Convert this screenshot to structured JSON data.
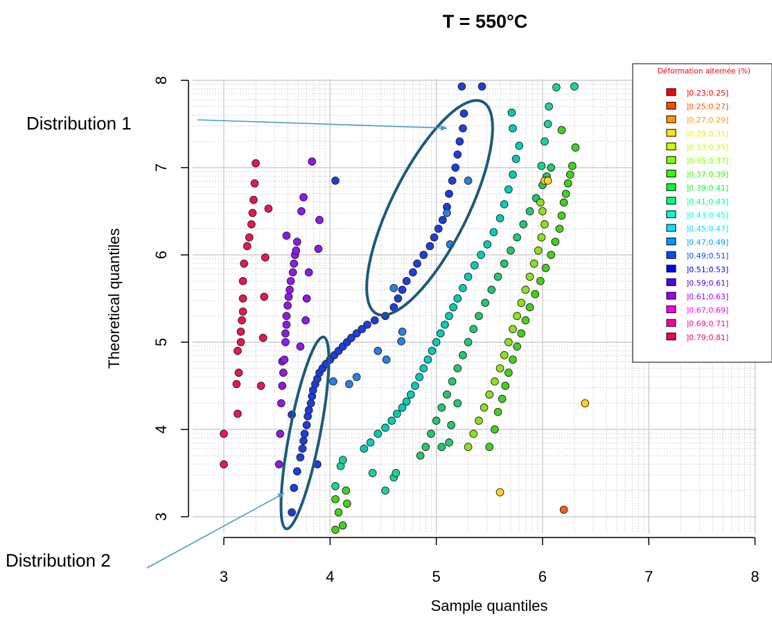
{
  "chart_data": {
    "type": "scatter",
    "title": "T = 550°C",
    "xlabel": "Sample quantiles",
    "ylabel": "Theoretical quantiles",
    "xlim": [
      3,
      8
    ],
    "ylim": [
      3,
      8
    ],
    "x_ticks": [
      "3",
      "4",
      "5",
      "6",
      "7",
      "8"
    ],
    "y_ticks": [
      "3",
      "4",
      "5",
      "6",
      "7",
      "8"
    ],
    "grid": true,
    "legend": {
      "title": "Déformation alternée (%)",
      "placement": "top-right",
      "entries": [
        {
          "label": "]0.23;0.25]",
          "color": "#ff0000"
        },
        {
          "label": "]0.25;0.27]",
          "color": "#ff4d00"
        },
        {
          "label": "]0.27;0.29]",
          "color": "#ff9900"
        },
        {
          "label": "]0.29;0.31]",
          "color": "#ffe600"
        },
        {
          "label": "]0.33;0.35]",
          "color": "#ccff00"
        },
        {
          "label": "]0.35;0.37]",
          "color": "#80ff00"
        },
        {
          "label": "]0.37;0.39]",
          "color": "#33ff00"
        },
        {
          "label": "]0.39;0.41]",
          "color": "#00ff33"
        },
        {
          "label": "]0.41;0.43]",
          "color": "#00ff80"
        },
        {
          "label": "]0.43;0.45]",
          "color": "#00ffcc"
        },
        {
          "label": "]0.45;0.47]",
          "color": "#00e6ff"
        },
        {
          "label": "]0.47;0.49]",
          "color": "#0099ff"
        },
        {
          "label": "]0.49;0.51]",
          "color": "#004dff"
        },
        {
          "label": "]0.51;0.53]",
          "color": "#0000ff"
        },
        {
          "label": "]0.59;0.61]",
          "color": "#4d00ff"
        },
        {
          "label": "]0.61;0.63]",
          "color": "#9900ff"
        },
        {
          "label": "]0.67;0.69]",
          "color": "#ff00e6"
        },
        {
          "label": "]0.69;0.71]",
          "color": "#ff0099"
        },
        {
          "label": "]0.79;0.81]",
          "color": "#ff004d"
        }
      ]
    },
    "annotations": [
      {
        "label": "Distribution 1",
        "points_to": [
          5.1,
          7.5
        ]
      },
      {
        "label": "Distribution 2",
        "points_to": [
          3.58,
          3.27
        ]
      }
    ],
    "series": [
      {
        "color": "#e5194f",
        "points": [
          [
            3.0,
            3.6
          ],
          [
            3.0,
            3.95
          ],
          [
            3.13,
            4.18
          ],
          [
            3.12,
            4.52
          ],
          [
            3.14,
            4.65
          ],
          [
            3.13,
            4.9
          ],
          [
            3.16,
            5.0
          ],
          [
            3.16,
            5.12
          ],
          [
            3.17,
            5.25
          ],
          [
            3.18,
            5.35
          ],
          [
            3.18,
            5.5
          ],
          [
            3.18,
            5.7
          ],
          [
            3.19,
            5.9
          ],
          [
            3.22,
            6.1
          ],
          [
            3.24,
            6.2
          ],
          [
            3.26,
            6.35
          ],
          [
            3.27,
            6.48
          ],
          [
            3.28,
            6.63
          ],
          [
            3.29,
            6.82
          ],
          [
            3.3,
            7.05
          ],
          [
            3.35,
            4.5
          ],
          [
            3.37,
            5.05
          ],
          [
            3.38,
            5.52
          ],
          [
            3.39,
            5.97
          ],
          [
            3.42,
            6.53
          ]
        ]
      },
      {
        "color": "#8f1ae5",
        "points": [
          [
            3.52,
            3.6
          ],
          [
            3.53,
            3.95
          ],
          [
            3.54,
            4.3
          ],
          [
            3.55,
            4.5
          ],
          [
            3.56,
            4.65
          ],
          [
            3.55,
            4.78
          ],
          [
            3.57,
            4.8
          ],
          [
            3.58,
            5.0
          ],
          [
            3.58,
            5.1
          ],
          [
            3.59,
            5.2
          ],
          [
            3.59,
            5.3
          ],
          [
            3.6,
            5.42
          ],
          [
            3.61,
            5.52
          ],
          [
            3.62,
            5.6
          ],
          [
            3.63,
            5.7
          ],
          [
            3.65,
            5.8
          ],
          [
            3.66,
            5.9
          ],
          [
            3.67,
            6.0
          ],
          [
            3.68,
            6.05
          ],
          [
            3.69,
            6.15
          ],
          [
            3.59,
            6.22
          ],
          [
            3.72,
            4.95
          ],
          [
            3.73,
            6.5
          ],
          [
            3.75,
            6.66
          ],
          [
            3.77,
            5.25
          ],
          [
            3.78,
            5.5
          ],
          [
            3.8,
            5.8
          ],
          [
            3.83,
            7.07
          ],
          [
            3.89,
            6.07
          ],
          [
            3.9,
            6.4
          ]
        ]
      },
      {
        "color": "#1f3ddb",
        "points": [
          [
            3.64,
            3.05
          ],
          [
            3.66,
            3.33
          ],
          [
            3.69,
            3.52
          ],
          [
            3.72,
            3.68
          ],
          [
            3.74,
            3.78
          ],
          [
            3.75,
            3.87
          ],
          [
            3.76,
            3.95
          ],
          [
            3.78,
            4.05
          ],
          [
            3.79,
            4.15
          ],
          [
            3.8,
            4.22
          ],
          [
            3.82,
            4.3
          ],
          [
            3.83,
            4.38
          ],
          [
            3.84,
            4.45
          ],
          [
            3.86,
            4.52
          ],
          [
            3.88,
            4.58
          ],
          [
            3.9,
            4.65
          ],
          [
            3.93,
            4.7
          ],
          [
            3.96,
            4.75
          ],
          [
            4.0,
            4.8
          ],
          [
            4.04,
            4.85
          ],
          [
            4.08,
            4.9
          ],
          [
            4.12,
            4.95
          ],
          [
            4.16,
            5.0
          ],
          [
            4.2,
            5.05
          ],
          [
            4.25,
            5.1
          ],
          [
            4.3,
            5.15
          ],
          [
            4.35,
            5.2
          ],
          [
            4.42,
            5.25
          ],
          [
            4.52,
            5.3
          ],
          [
            4.6,
            5.4
          ],
          [
            4.64,
            5.5
          ],
          [
            4.68,
            5.6
          ],
          [
            4.72,
            5.7
          ],
          [
            4.78,
            5.8
          ],
          [
            4.82,
            5.9
          ],
          [
            4.88,
            6.0
          ],
          [
            4.94,
            6.1
          ],
          [
            4.98,
            6.2
          ],
          [
            5.02,
            6.3
          ],
          [
            5.06,
            6.4
          ],
          [
            5.1,
            6.55
          ],
          [
            5.12,
            6.7
          ],
          [
            5.15,
            6.85
          ],
          [
            5.18,
            7.0
          ],
          [
            5.2,
            7.15
          ],
          [
            5.22,
            7.3
          ],
          [
            5.25,
            7.45
          ],
          [
            5.26,
            7.62
          ],
          [
            5.24,
            7.93
          ],
          [
            5.43,
            7.93
          ],
          [
            3.64,
            4.17
          ],
          [
            3.88,
            3.6
          ],
          [
            4.05,
            6.85
          ]
        ]
      },
      {
        "color": "#2b7fe0",
        "points": [
          [
            4.03,
            4.55
          ],
          [
            4.18,
            4.52
          ],
          [
            4.25,
            4.6
          ],
          [
            4.45,
            4.9
          ],
          [
            4.53,
            4.8
          ],
          [
            4.6,
            5.62
          ],
          [
            4.68,
            5.12
          ],
          [
            4.67,
            5.01
          ],
          [
            5.1,
            6.48
          ],
          [
            5.13,
            6.12
          ],
          [
            5.3,
            6.85
          ]
        ]
      },
      {
        "color": "#00cdb8",
        "points": [
          [
            4.32,
            3.78
          ],
          [
            4.38,
            3.85
          ],
          [
            4.45,
            3.95
          ],
          [
            4.52,
            4.02
          ],
          [
            4.58,
            4.1
          ],
          [
            4.63,
            4.18
          ],
          [
            4.68,
            4.25
          ],
          [
            4.72,
            4.32
          ],
          [
            4.76,
            4.4
          ],
          [
            4.8,
            4.5
          ],
          [
            4.84,
            4.6
          ],
          [
            4.88,
            4.7
          ],
          [
            4.92,
            4.8
          ],
          [
            4.96,
            4.9
          ],
          [
            5.0,
            5.0
          ],
          [
            5.04,
            5.1
          ],
          [
            5.08,
            5.2
          ],
          [
            5.12,
            5.3
          ],
          [
            5.16,
            5.4
          ],
          [
            5.2,
            5.5
          ],
          [
            5.25,
            5.62
          ],
          [
            5.3,
            5.75
          ],
          [
            5.36,
            5.88
          ],
          [
            5.42,
            6.0
          ],
          [
            5.48,
            6.12
          ],
          [
            5.54,
            6.26
          ],
          [
            5.6,
            6.42
          ],
          [
            5.64,
            6.58
          ],
          [
            5.68,
            6.75
          ],
          [
            5.72,
            6.92
          ],
          [
            5.75,
            7.1
          ],
          [
            5.78,
            7.25
          ],
          [
            5.72,
            7.45
          ],
          [
            5.71,
            7.63
          ]
        ]
      },
      {
        "color": "#17d49b",
        "points": [
          [
            4.05,
            3.35
          ],
          [
            4.1,
            3.58
          ],
          [
            4.12,
            3.65
          ],
          [
            4.4,
            3.5
          ],
          [
            4.52,
            3.3
          ],
          [
            4.6,
            3.45
          ],
          [
            4.62,
            3.5
          ],
          [
            5.99,
            7.02
          ],
          [
            6.02,
            7.3
          ],
          [
            6.05,
            7.5
          ],
          [
            6.06,
            7.7
          ],
          [
            6.13,
            7.92
          ],
          [
            6.3,
            7.93
          ]
        ]
      },
      {
        "color": "#22c76e",
        "points": [
          [
            4.85,
            3.7
          ],
          [
            4.9,
            3.8
          ],
          [
            4.95,
            3.95
          ],
          [
            5.0,
            4.1
          ],
          [
            5.05,
            4.25
          ],
          [
            5.1,
            4.4
          ],
          [
            5.15,
            4.55
          ],
          [
            5.2,
            4.7
          ],
          [
            5.25,
            4.85
          ],
          [
            5.3,
            5.0
          ],
          [
            5.35,
            5.15
          ],
          [
            5.4,
            5.3
          ],
          [
            5.46,
            5.45
          ],
          [
            5.52,
            5.6
          ],
          [
            5.58,
            5.75
          ],
          [
            5.64,
            5.9
          ],
          [
            5.7,
            6.05
          ],
          [
            5.76,
            6.2
          ],
          [
            5.82,
            6.35
          ],
          [
            5.88,
            6.5
          ],
          [
            5.94,
            6.65
          ],
          [
            6.0,
            6.8
          ],
          [
            6.04,
            6.9
          ],
          [
            6.08,
            7.0
          ],
          [
            5.05,
            3.8
          ],
          [
            5.12,
            3.85
          ],
          [
            5.14,
            4.05
          ],
          [
            5.2,
            4.3
          ]
        ]
      },
      {
        "color": "#44d11d",
        "points": [
          [
            4.05,
            2.85
          ],
          [
            4.08,
            3.05
          ],
          [
            4.12,
            2.9
          ],
          [
            4.16,
            3.15
          ],
          [
            4.15,
            3.3
          ],
          [
            4.05,
            3.2
          ],
          [
            5.5,
            3.8
          ],
          [
            5.55,
            4.0
          ],
          [
            5.58,
            4.2
          ],
          [
            5.62,
            4.35
          ],
          [
            5.65,
            4.5
          ],
          [
            5.68,
            4.65
          ],
          [
            5.72,
            4.8
          ],
          [
            5.76,
            4.95
          ],
          [
            5.8,
            5.1
          ],
          [
            5.84,
            5.25
          ],
          [
            5.88,
            5.4
          ],
          [
            5.93,
            5.55
          ],
          [
            5.98,
            5.7
          ],
          [
            6.03,
            5.85
          ],
          [
            6.08,
            6.0
          ],
          [
            6.12,
            6.15
          ],
          [
            6.16,
            6.3
          ],
          [
            6.18,
            6.45
          ],
          [
            6.2,
            6.6
          ],
          [
            6.22,
            6.7
          ],
          [
            6.24,
            6.82
          ],
          [
            6.26,
            6.92
          ],
          [
            6.28,
            7.02
          ],
          [
            6.31,
            7.23
          ],
          [
            6.18,
            7.43
          ]
        ]
      },
      {
        "color": "#8fe01c",
        "points": [
          [
            5.35,
            3.95
          ],
          [
            5.4,
            4.1
          ],
          [
            5.45,
            4.25
          ],
          [
            5.5,
            4.4
          ],
          [
            5.55,
            4.55
          ],
          [
            5.6,
            4.7
          ],
          [
            5.64,
            4.85
          ],
          [
            5.68,
            5.0
          ],
          [
            5.72,
            5.15
          ],
          [
            5.76,
            5.3
          ],
          [
            5.8,
            5.45
          ],
          [
            5.84,
            5.6
          ],
          [
            5.88,
            5.75
          ],
          [
            5.92,
            5.9
          ],
          [
            5.96,
            6.05
          ],
          [
            5.99,
            6.2
          ],
          [
            6.02,
            6.35
          ],
          [
            6.0,
            6.5
          ],
          [
            5.98,
            6.6
          ],
          [
            5.3,
            3.8
          ]
        ]
      },
      {
        "color": "#ffd21c",
        "points": [
          [
            5.6,
            3.28
          ],
          [
            6.4,
            4.3
          ],
          [
            6.02,
            6.85
          ],
          [
            6.05,
            6.85
          ]
        ]
      },
      {
        "color": "#ff5a1c",
        "points": [
          [
            6.2,
            3.08
          ]
        ]
      }
    ]
  }
}
